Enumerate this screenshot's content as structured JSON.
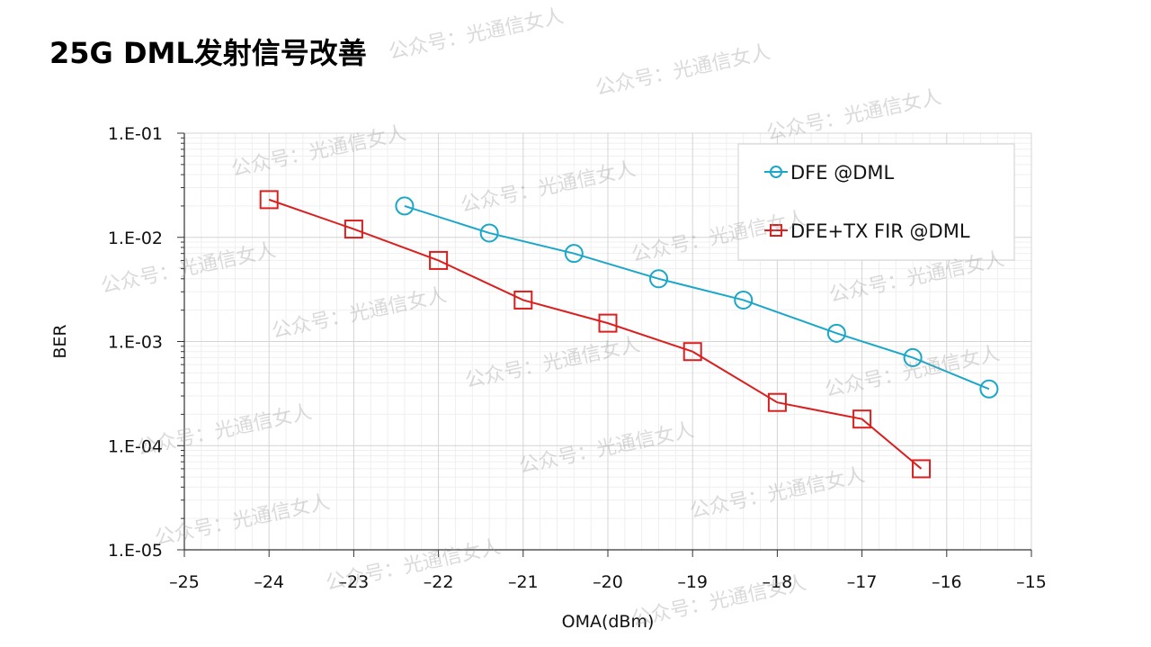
{
  "page_title": "25G DML发射信号改善",
  "watermark": "公众号：光通信女人",
  "chart_data": {
    "type": "line",
    "title": "",
    "xlabel": "OMA(dBm)",
    "ylabel": "BER",
    "xlim": [
      -25,
      -15
    ],
    "ylim": [
      1e-05,
      0.1
    ],
    "yscale": "log",
    "grid": true,
    "legend_position": "top-right",
    "x_ticks": [
      "-25",
      "-24",
      "-23",
      "-22",
      "-21",
      "-20",
      "-19",
      "-18",
      "-17",
      "-16",
      "-15"
    ],
    "y_ticks": [
      "1.E-01",
      "1.E-02",
      "1.E-03",
      "1.E-04",
      "1.E-05"
    ],
    "series": [
      {
        "name": "DFE @DML",
        "color": "#1aa7c9",
        "marker": "circle",
        "x": [
          -22.4,
          -21.4,
          -20.4,
          -19.4,
          -18.4,
          -17.3,
          -16.4,
          -15.5
        ],
        "y": [
          0.02,
          0.011,
          0.007,
          0.004,
          0.0025,
          0.0012,
          0.0007,
          0.00035
        ]
      },
      {
        "name": "DFE+TX FIR @DML",
        "color": "#d9201f",
        "marker": "square",
        "x": [
          -24,
          -23,
          -22,
          -21,
          -20,
          -19,
          -18,
          -17,
          -16.3
        ],
        "y": [
          0.023,
          0.012,
          0.006,
          0.0025,
          0.0015,
          0.0008,
          0.00026,
          0.00018,
          6e-05
        ]
      }
    ]
  }
}
